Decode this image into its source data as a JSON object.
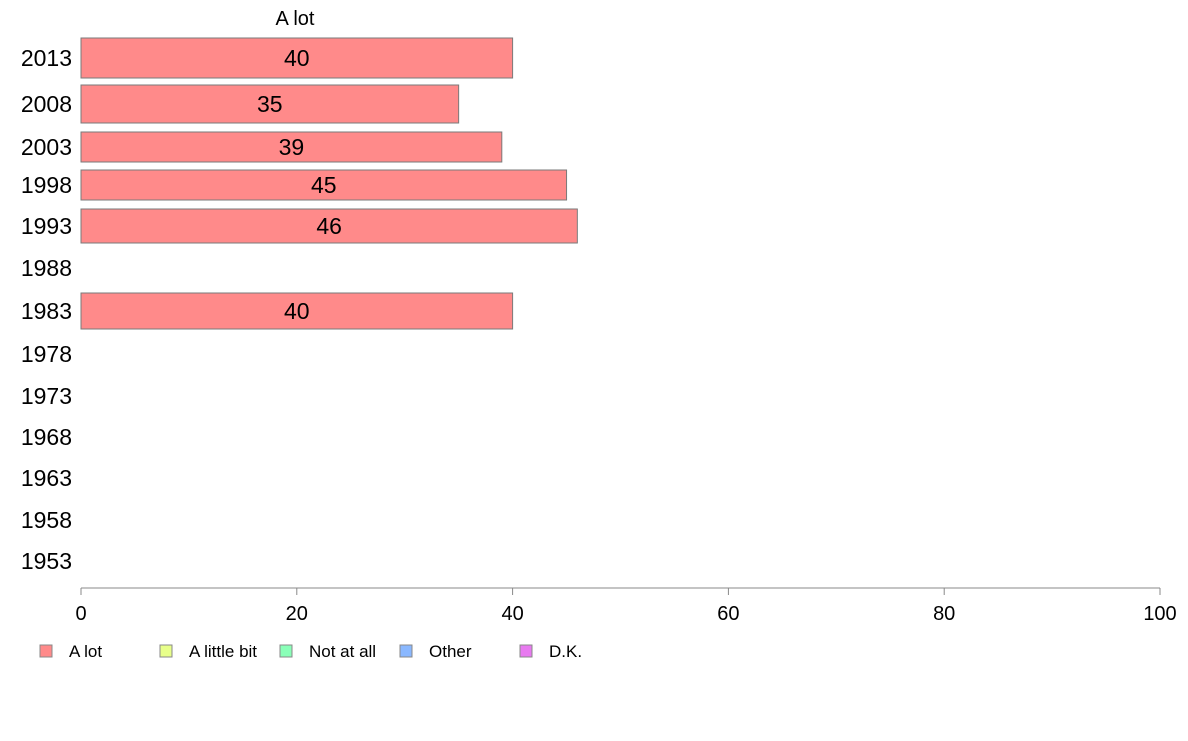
{
  "chart_data": {
    "type": "bar",
    "orientation": "horizontal",
    "title": "A lot",
    "categories": [
      "2013",
      "2008",
      "2003",
      "1998",
      "1993",
      "1988",
      "1983",
      "1978",
      "1973",
      "1968",
      "1963",
      "1958",
      "1953"
    ],
    "series": [
      {
        "name": "A lot",
        "values": [
          40,
          35,
          39,
          45,
          46,
          null,
          40,
          null,
          null,
          null,
          null,
          null,
          null
        ],
        "color": "#ff8a8a"
      }
    ],
    "data_labels": [
      "40",
      "35",
      "39",
      "45",
      "46",
      "",
      "40",
      "",
      "",
      "",
      "",
      "",
      ""
    ],
    "xlim": [
      0,
      100
    ],
    "xticks": [
      "0",
      "20",
      "40",
      "60",
      "80",
      "100"
    ],
    "grid": false,
    "legend": {
      "placement": "bottom-left",
      "entries": [
        {
          "label": "A lot",
          "color": "#ff8a8a"
        },
        {
          "label": "A little bit",
          "color": "#e8ff8a"
        },
        {
          "label": "Not at all",
          "color": "#8affb8"
        },
        {
          "label": "Other",
          "color": "#8ab8ff"
        },
        {
          "label": "D.K.",
          "color": "#e87af0"
        }
      ]
    }
  }
}
